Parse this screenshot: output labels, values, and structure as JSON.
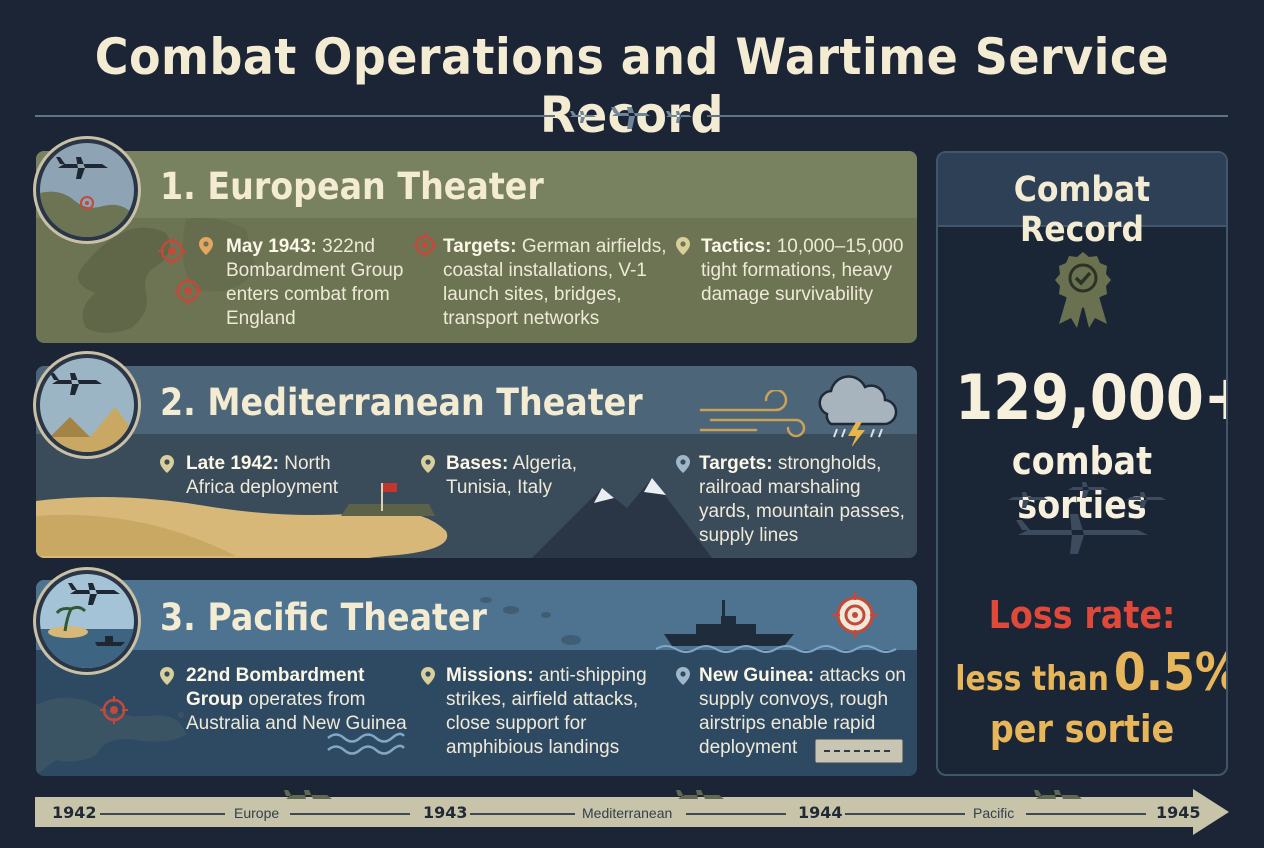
{
  "title": "Combat Operations and Wartime Service Record",
  "theaters": [
    {
      "title": "1. European Theater",
      "items": [
        {
          "label": "May 1943:",
          "text": "322nd Bombardment Group enters combat from England",
          "icon": "map-pin-icon"
        },
        {
          "label": "Targets:",
          "text": "German airfields, coastal installations, V-1 launch sites, bridges, transport networks",
          "icon": "crosshair-target-icon"
        },
        {
          "label": "Tactics:",
          "text": "10,000–15,000 tight formations, heavy damage survivability",
          "icon": "map-pin-icon"
        }
      ]
    },
    {
      "title": "2. Mediterranean Theater",
      "items": [
        {
          "label": "Late 1942:",
          "text": "North Africa deployment",
          "icon": "map-pin-icon"
        },
        {
          "label": "Bases:",
          "text": "Algeria, Tunisia, Italy",
          "icon": "map-pin-icon"
        },
        {
          "label": "Targets:",
          "text": "strongholds, railroad marshaling yards, mountain passes, supply lines",
          "icon": "map-pin-icon"
        }
      ]
    },
    {
      "title": "3. Pacific Theater",
      "items": [
        {
          "label": "22nd Bombardment Group",
          "text": "operates from Australia and New Guinea",
          "icon": "map-pin-icon"
        },
        {
          "label": "Missions:",
          "text": "anti-shipping strikes, airfield attacks, close support for amphibious landings",
          "icon": "map-pin-icon"
        },
        {
          "label": "New Guinea:",
          "text": "attacks on supply convoys, rough airstrips enable rapid deployment",
          "icon": "map-pin-icon"
        }
      ]
    }
  ],
  "record": {
    "title": "Combat Record",
    "sorties_value": "129,000+",
    "sorties_label": "combat sorties",
    "loss_heading": "Loss rate:",
    "loss_prefix": "less than",
    "loss_value": "0.5%",
    "loss_suffix": "per sortie",
    "icon": "award-badge-icon"
  },
  "timeline": {
    "years": [
      "1942",
      "1943",
      "1944",
      "1945"
    ],
    "segments": [
      "Europe",
      "Mediterranean",
      "Pacific"
    ]
  },
  "colors": {
    "background": "#1b2536",
    "title": "#f4ecd2",
    "european": "#788160",
    "mediterranean": "#4d6578",
    "pacific": "#4e7390",
    "loss_heading": "#e0483a",
    "loss_value": "#e7b55a"
  }
}
